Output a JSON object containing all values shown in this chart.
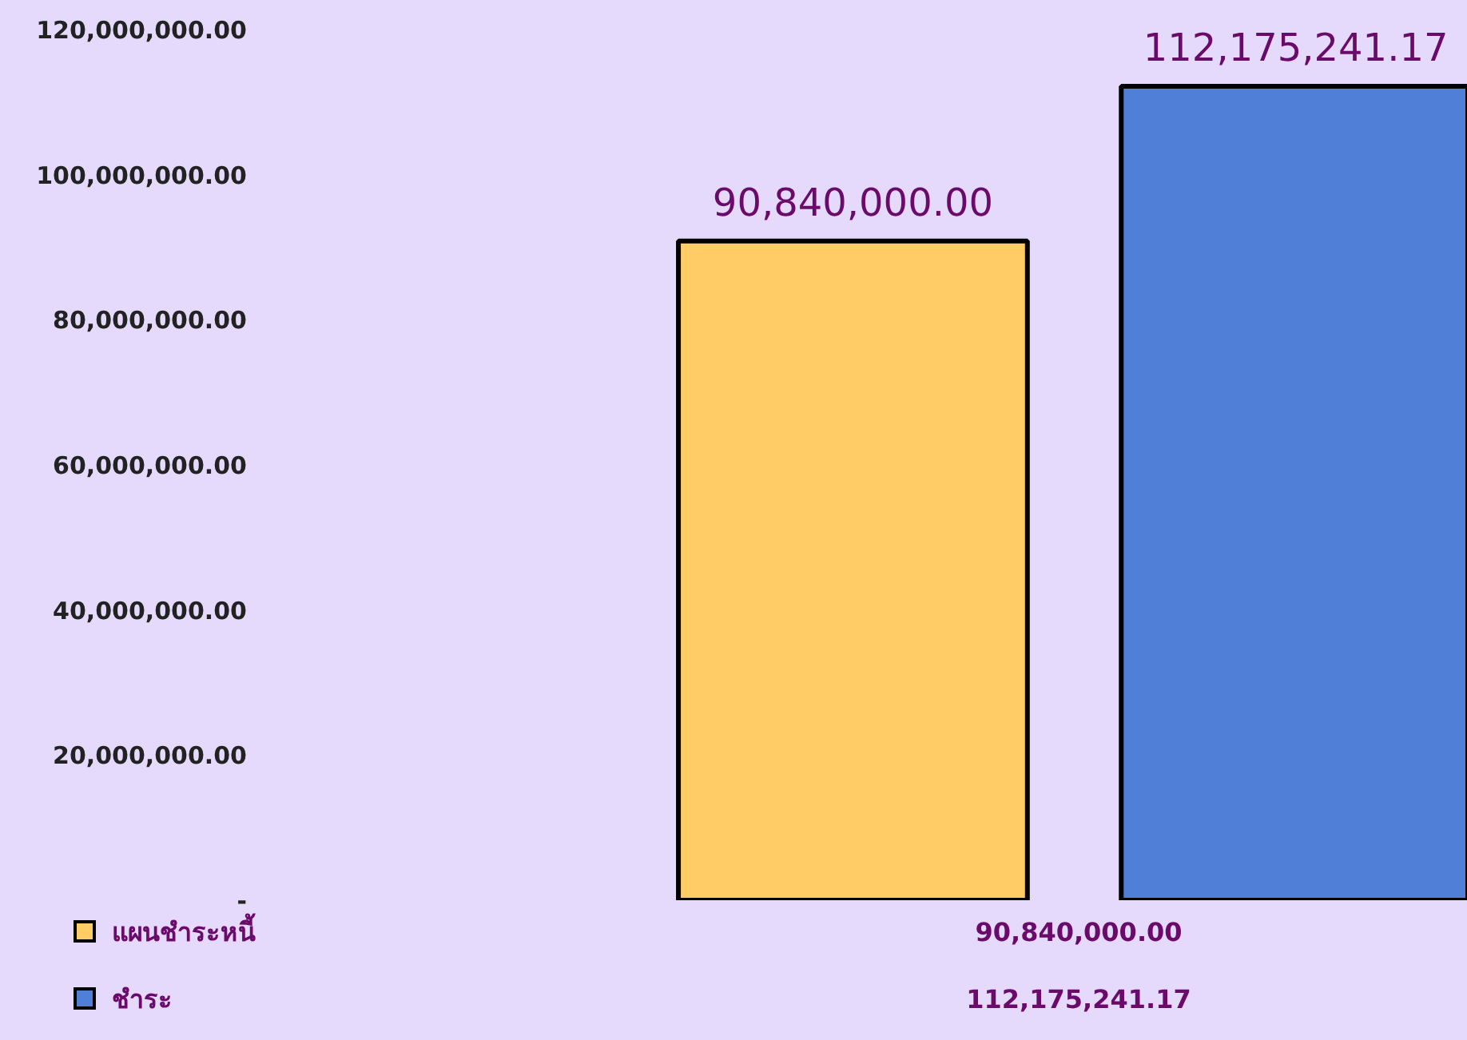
{
  "chart_data": {
    "type": "bar",
    "categories": [
      null
    ],
    "series": [
      {
        "name": "แผนชำระหนี้",
        "color": "#ffcc66",
        "values": [
          90840000.0
        ],
        "value_labels": [
          "90,840,000.00"
        ]
      },
      {
        "name": "ชำระ",
        "color": "#4f7fd6",
        "values": [
          112175241.17
        ],
        "value_labels": [
          "112,175,241.17"
        ]
      }
    ],
    "ylim": [
      0,
      120000000
    ],
    "yticks": [
      {
        "value": 0,
        "label": "-"
      },
      {
        "value": 20000000,
        "label": "20,000,000.00"
      },
      {
        "value": 40000000,
        "label": "40,000,000.00"
      },
      {
        "value": 60000000,
        "label": "60,000,000.00"
      },
      {
        "value": 80000000,
        "label": "80,000,000.00"
      },
      {
        "value": 100000000,
        "label": "100,000,000.00"
      },
      {
        "value": 120000000,
        "label": "120,000,000.00"
      }
    ],
    "grid": false,
    "legend": "bottom",
    "tick_labels": "y"
  }
}
